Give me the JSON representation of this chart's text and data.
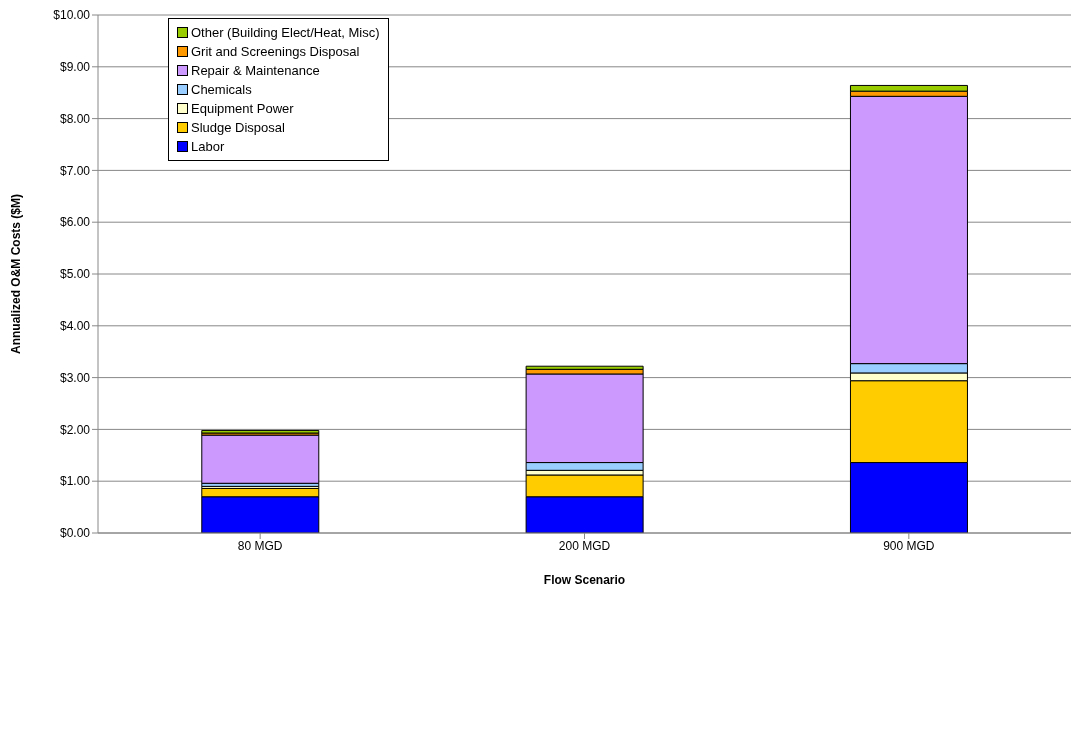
{
  "chart_data": {
    "type": "bar",
    "stacked": true,
    "xlabel": "Flow Scenario",
    "ylabel": "Annualized O&M Costs ($M)",
    "categories": [
      "80 MGD",
      "200 MGD",
      "900 MGD"
    ],
    "series": [
      {
        "name": "Labor",
        "color": "#0000ff",
        "values": [
          0.7,
          0.7,
          1.36
        ]
      },
      {
        "name": "Sludge Disposal",
        "color": "#ffcc00",
        "values": [
          0.16,
          0.42,
          1.58
        ]
      },
      {
        "name": "Equipment Power",
        "color": "#ffffcc",
        "values": [
          0.04,
          0.09,
          0.15
        ]
      },
      {
        "name": "Chemicals",
        "color": "#99ccff",
        "values": [
          0.06,
          0.15,
          0.18
        ]
      },
      {
        "name": "Repair & Maintenance",
        "color": "#cc99ff",
        "values": [
          0.93,
          1.71,
          5.16
        ]
      },
      {
        "name": "Grit and Screenings Disposal",
        "color": "#ff9900",
        "values": [
          0.04,
          0.09,
          0.1
        ]
      },
      {
        "name": "Other (Building Elect/Heat, Misc)",
        "color": "#99cc00",
        "values": [
          0.05,
          0.06,
          0.11
        ]
      }
    ],
    "ylim": [
      0,
      10
    ],
    "yticks": [
      {
        "value": 0,
        "label": "$0.00"
      },
      {
        "value": 1,
        "label": "$1.00"
      },
      {
        "value": 2,
        "label": "$2.00"
      },
      {
        "value": 3,
        "label": "$3.00"
      },
      {
        "value": 4,
        "label": "$4.00"
      },
      {
        "value": 5,
        "label": "$5.00"
      },
      {
        "value": 6,
        "label": "$6.00"
      },
      {
        "value": 7,
        "label": "$7.00"
      },
      {
        "value": 8,
        "label": "$8.00"
      },
      {
        "value": 9,
        "label": "$9.00"
      },
      {
        "value": 10,
        "label": "$10.00"
      }
    ],
    "grid": "y",
    "legend": "top left"
  }
}
